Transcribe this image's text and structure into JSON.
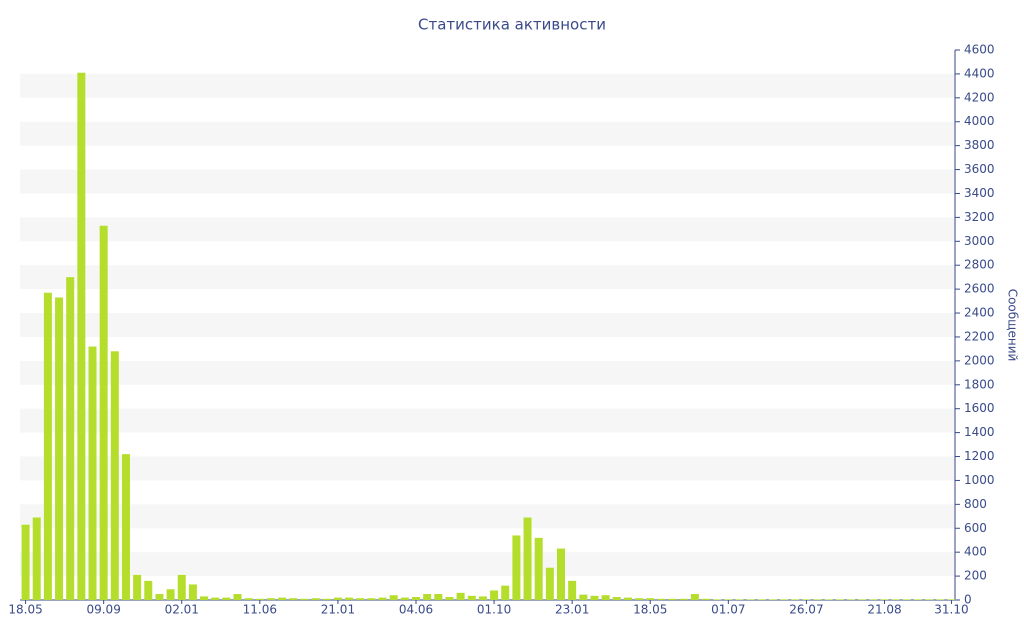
{
  "chart_data": {
    "type": "bar",
    "title": "Статистика активности",
    "y_label": "Сообщений",
    "color": "#b5de2c",
    "categories": [
      "18.05",
      null,
      null,
      null,
      null,
      null,
      null,
      "09.09",
      null,
      null,
      null,
      null,
      null,
      null,
      "02.01",
      null,
      null,
      null,
      null,
      null,
      null,
      "11.06",
      null,
      null,
      null,
      null,
      null,
      null,
      "21.01",
      null,
      null,
      null,
      null,
      null,
      null,
      "04.06",
      null,
      null,
      null,
      null,
      null,
      null,
      "01.10",
      null,
      null,
      null,
      null,
      null,
      null,
      "23.01",
      null,
      null,
      null,
      null,
      null,
      null,
      "18.05",
      null,
      null,
      null,
      null,
      null,
      null,
      "01.07",
      null,
      null,
      null,
      null,
      null,
      null,
      "26.07",
      null,
      null,
      null,
      null,
      null,
      null,
      "21.08",
      null,
      null,
      null,
      null,
      null,
      "31.10"
    ],
    "values": [
      630,
      690,
      2570,
      2530,
      2700,
      4410,
      2120,
      3130,
      2080,
      1220,
      210,
      160,
      50,
      90,
      210,
      130,
      30,
      20,
      20,
      50,
      15,
      10,
      15,
      20,
      15,
      10,
      15,
      10,
      20,
      20,
      15,
      15,
      20,
      40,
      20,
      25,
      50,
      50,
      25,
      60,
      35,
      30,
      80,
      120,
      540,
      690,
      520,
      270,
      430,
      160,
      45,
      35,
      40,
      25,
      20,
      15,
      15,
      10,
      10,
      10,
      50,
      10,
      5,
      5,
      5,
      5,
      5,
      5,
      5,
      5,
      5,
      5,
      5,
      5,
      5,
      5,
      5,
      5,
      5,
      5,
      5,
      5,
      5,
      5
    ],
    "ylim": [
      0,
      4600
    ],
    "yticks": [
      0,
      200,
      400,
      600,
      800,
      1000,
      1200,
      1400,
      1600,
      1800,
      2000,
      2200,
      2400,
      2600,
      2800,
      3000,
      3200,
      3400,
      3600,
      3800,
      4000,
      4200,
      4400,
      4600
    ],
    "grid": true
  }
}
